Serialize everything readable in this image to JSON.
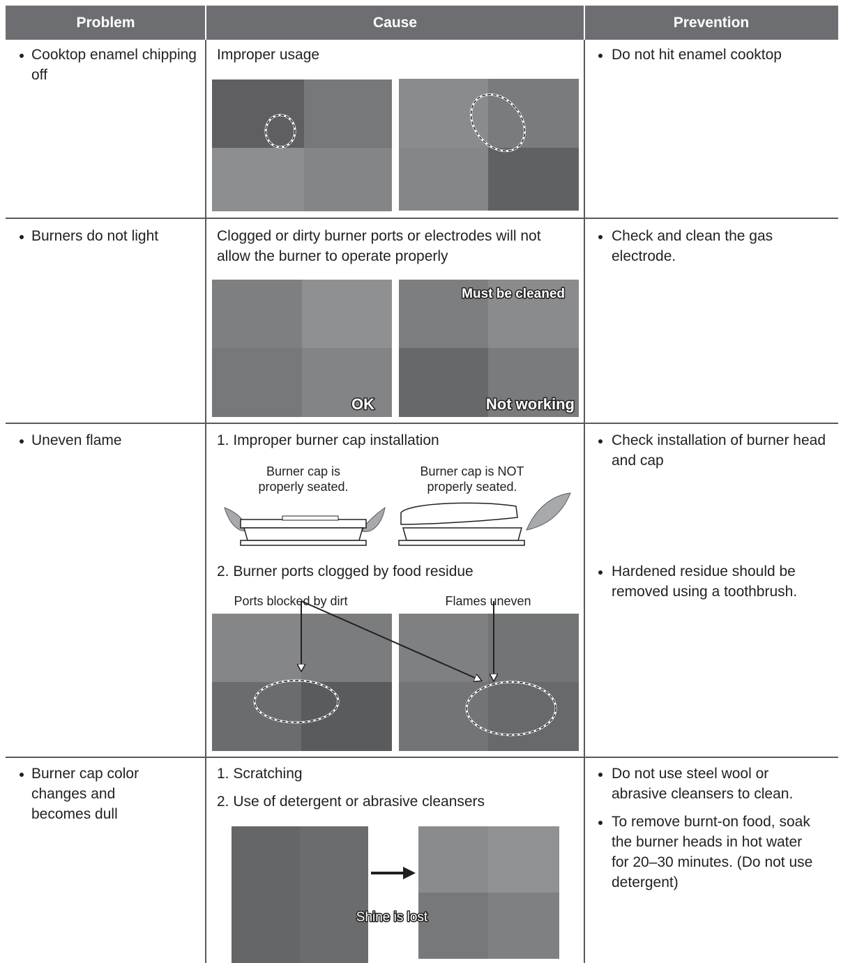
{
  "table": {
    "columns": [
      "Problem",
      "Cause",
      "Prevention"
    ],
    "rows": [
      {
        "problem": "Cooktop enamel chipping off",
        "cause": {
          "text": "Improper usage"
        },
        "prevention": [
          "Do not hit enamel cooktop"
        ]
      },
      {
        "problem": "Burners do not light",
        "cause": {
          "text": "Clogged or dirty burner ports or electrodes will not allow the burner to operate properly",
          "image_labels": [
            "OK",
            "Must be cleaned",
            "Not working"
          ]
        },
        "prevention": [
          "Check and clean the gas electrode."
        ]
      },
      {
        "problem": "Uneven flame",
        "cause": {
          "items": [
            {
              "text": "1. Improper burner cap installation",
              "labels": [
                "Burner cap is properly seated.",
                "Burner cap is NOT properly seated."
              ]
            },
            {
              "text": "2.  Burner ports clogged by food residue",
              "labels": [
                "Ports blocked by dirt",
                "Flames uneven"
              ]
            }
          ]
        },
        "prevention": [
          "Check installation of burner head and cap",
          "Hardened residue should be removed using a toothbrush."
        ]
      },
      {
        "problem": "Burner cap color changes and becomes dull",
        "cause": {
          "items": [
            "1. Scratching",
            "2. Use of detergent or abrasive cleansers"
          ],
          "image_label": "Shine is lost"
        },
        "prevention": [
          "Do not use steel wool or abrasive cleansers to clean.",
          "To remove burnt-on food, soak the burner heads in hot water for 20–30 minutes. (Do not use detergent)"
        ]
      }
    ]
  }
}
